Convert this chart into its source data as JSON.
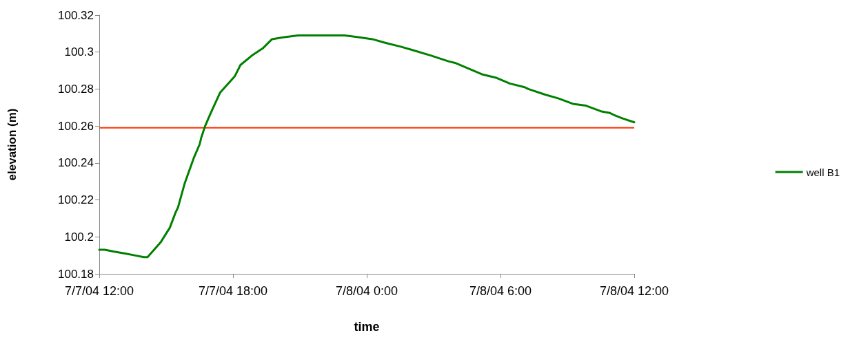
{
  "chart_data": {
    "type": "line",
    "xlabel": "time",
    "ylabel": "elevation (m)",
    "series": [
      {
        "name": "well B1",
        "color": "#008000",
        "x": [
          "--07-07T12:00",
          "--07-07T12:15",
          "--07-07T12:40",
          "--07-07T13:10",
          "--07-07T13:35",
          "--07-07T14:00",
          "--07-07T14:10",
          "--07-07T14:45",
          "--07-07T15:10",
          "--07-07T15:25",
          "--07-07T15:32",
          "--07-07T15:50",
          "--07-07T16:15",
          "--07-07T16:30",
          "--07-07T16:35",
          "--07-07T16:45",
          "--07-07T17:00",
          "--07-07T17:25",
          "--07-07T18:05",
          "--07-07T18:20",
          "--07-07T18:50",
          "--07-07T19:20",
          "--07-07T19:45",
          "--07-07T20:15",
          "--07-07T20:55",
          "--07-07T23:00",
          "--07-07T23:40",
          "--07-08T00:15",
          "--07-08T00:50",
          "--07-08T01:30",
          "--07-08T02:05",
          "--07-08T02:55",
          "--07-08T03:40",
          "--07-08T04:00",
          "--07-08T04:35",
          "--07-08T05:10",
          "--07-08T05:50",
          "--07-08T06:25",
          "--07-08T07:05",
          "--07-08T07:15",
          "--07-08T08:00",
          "--07-08T08:35",
          "--07-08T09:15",
          "--07-08T09:50",
          "--07-08T10:30",
          "--07-08T10:55",
          "--07-08T11:05",
          "--07-08T11:30",
          "--07-08T12:00"
        ],
        "values": [
          100.193,
          100.193,
          100.192,
          100.191,
          100.19,
          100.189,
          100.189,
          100.197,
          100.205,
          100.213,
          100.216,
          100.229,
          100.243,
          100.25,
          100.254,
          100.26,
          100.267,
          100.278,
          100.287,
          100.293,
          100.298,
          100.302,
          100.307,
          100.308,
          100.309,
          100.309,
          100.308,
          100.307,
          100.305,
          100.303,
          100.301,
          100.298,
          100.295,
          100.294,
          100.291,
          100.288,
          100.286,
          100.283,
          100.281,
          100.28,
          100.277,
          100.275,
          100.272,
          100.271,
          100.268,
          100.267,
          100.266,
          100.264,
          100.262
        ]
      }
    ],
    "ref_lines": [
      {
        "axis": "y",
        "value": 100.259,
        "color": "#ff3300"
      }
    ],
    "xlim": [
      "--07-07T12:00",
      "--07-08T12:00"
    ],
    "xticks": [
      {
        "value": "--07-07T12:00",
        "label": "7/7/04 12:00"
      },
      {
        "value": "--07-07T18:00",
        "label": "7/7/04 18:00"
      },
      {
        "value": "--07-08T00:00",
        "label": "7/8/04 0:00"
      },
      {
        "value": "--07-08T06:00",
        "label": "7/8/04 6:00"
      },
      {
        "value": "--07-08T12:00",
        "label": "7/8/04 12:00"
      }
    ],
    "ylim": [
      100.18,
      100.32
    ],
    "yticks": [
      100.18,
      100.2,
      100.22,
      100.24,
      100.26,
      100.28,
      100.3,
      100.32
    ],
    "grid": false,
    "legend": "right",
    "marker": "none",
    "line_style": "solid"
  }
}
